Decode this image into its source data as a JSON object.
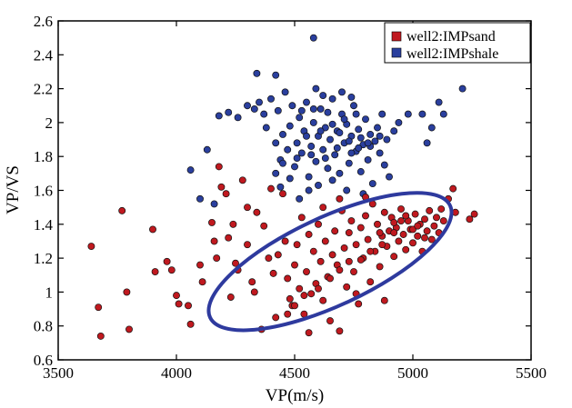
{
  "chart_data": {
    "type": "scatter",
    "title": "",
    "xlabel": "VP(m/s)",
    "ylabel": "VP/VS",
    "xlim": [
      3500,
      5500
    ],
    "ylim": [
      0.6,
      2.6
    ],
    "xticks": [
      "3500",
      "4000",
      "4500",
      "5000",
      "5500"
    ],
    "yticks": [
      "0.6",
      "0.8",
      "1",
      "1.2",
      "1.4",
      "1.6",
      "1.8",
      "2",
      "2.2",
      "2.4",
      "2.6"
    ],
    "xtick_values": [
      3500,
      4000,
      4500,
      5000,
      5500
    ],
    "ytick_values": [
      0.6,
      0.8,
      1.0,
      1.2,
      1.4,
      1.6,
      1.8,
      2.0,
      2.2,
      2.4,
      2.6
    ],
    "legend_position": "top-right",
    "series": [
      {
        "name": "well2:IMPsand",
        "color": "#c0191f",
        "points": [
          [
            3640,
            1.27
          ],
          [
            3670,
            0.91
          ],
          [
            3680,
            0.74
          ],
          [
            3770,
            1.48
          ],
          [
            3790,
            1.0
          ],
          [
            3800,
            0.78
          ],
          [
            3900,
            1.37
          ],
          [
            3910,
            1.12
          ],
          [
            3960,
            1.18
          ],
          [
            3980,
            1.13
          ],
          [
            4000,
            0.98
          ],
          [
            4010,
            0.93
          ],
          [
            4050,
            0.92
          ],
          [
            4060,
            0.81
          ],
          [
            4100,
            1.16
          ],
          [
            4110,
            1.06
          ],
          [
            4150,
            1.41
          ],
          [
            4160,
            1.3
          ],
          [
            4170,
            1.2
          ],
          [
            4180,
            1.74
          ],
          [
            4190,
            1.62
          ],
          [
            4210,
            1.58
          ],
          [
            4220,
            1.32
          ],
          [
            4240,
            1.4
          ],
          [
            4260,
            1.13
          ],
          [
            4280,
            1.66
          ],
          [
            4300,
            1.5
          ],
          [
            4320,
            1.06
          ],
          [
            4340,
            1.47
          ],
          [
            4360,
            0.78
          ],
          [
            4370,
            1.39
          ],
          [
            4390,
            1.2
          ],
          [
            4410,
            1.11
          ],
          [
            4420,
            0.85
          ],
          [
            4430,
            1.22
          ],
          [
            4450,
            1.58
          ],
          [
            4460,
            1.3
          ],
          [
            4470,
            1.08
          ],
          [
            4480,
            0.96
          ],
          [
            4490,
            0.92
          ],
          [
            4500,
            1.16
          ],
          [
            4510,
            1.28
          ],
          [
            4520,
            1.02
          ],
          [
            4530,
            1.44
          ],
          [
            4540,
            0.87
          ],
          [
            4550,
            1.12
          ],
          [
            4560,
            1.34
          ],
          [
            4570,
            0.99
          ],
          [
            4580,
            1.24
          ],
          [
            4590,
            1.05
          ],
          [
            4600,
            1.4
          ],
          [
            4610,
            1.18
          ],
          [
            4620,
            0.95
          ],
          [
            4630,
            1.3
          ],
          [
            4640,
            1.09
          ],
          [
            4650,
            0.83
          ],
          [
            4660,
            1.22
          ],
          [
            4670,
            1.36
          ],
          [
            4680,
            1.16
          ],
          [
            4690,
            0.77
          ],
          [
            4700,
            1.48
          ],
          [
            4710,
            1.26
          ],
          [
            4720,
            1.03
          ],
          [
            4730,
            1.35
          ],
          [
            4740,
            1.42
          ],
          [
            4750,
            1.12
          ],
          [
            4760,
            1.28
          ],
          [
            4770,
            0.93
          ],
          [
            4780,
            1.38
          ],
          [
            4790,
            1.2
          ],
          [
            4800,
            1.45
          ],
          [
            4810,
            1.31
          ],
          [
            4820,
            1.06
          ],
          [
            4830,
            1.52
          ],
          [
            4840,
            1.24
          ],
          [
            4850,
            1.4
          ],
          [
            4860,
            1.15
          ],
          [
            4870,
            1.33
          ],
          [
            4880,
            1.47
          ],
          [
            4890,
            1.27
          ],
          [
            4900,
            1.36
          ],
          [
            4910,
            1.44
          ],
          [
            4920,
            1.21
          ],
          [
            4930,
            1.38
          ],
          [
            4940,
            1.3
          ],
          [
            4950,
            1.49
          ],
          [
            4960,
            1.34
          ],
          [
            4970,
            1.25
          ],
          [
            4980,
            1.42
          ],
          [
            4990,
            1.37
          ],
          [
            5000,
            1.29
          ],
          [
            5010,
            1.46
          ],
          [
            5020,
            1.33
          ],
          [
            5030,
            1.4
          ],
          [
            5040,
            1.24
          ],
          [
            5050,
            1.43
          ],
          [
            5060,
            1.36
          ],
          [
            5070,
            1.48
          ],
          [
            5080,
            1.31
          ],
          [
            5090,
            1.39
          ],
          [
            5100,
            1.44
          ],
          [
            5110,
            1.35
          ],
          [
            5120,
            1.49
          ],
          [
            5130,
            1.42
          ],
          [
            5150,
            1.55
          ],
          [
            5170,
            1.61
          ],
          [
            5180,
            1.47
          ],
          [
            5240,
            1.43
          ],
          [
            5260,
            1.46
          ],
          [
            4400,
            1.61
          ],
          [
            4330,
            1.0
          ],
          [
            4880,
            0.95
          ],
          [
            4760,
            0.99
          ],
          [
            4560,
            0.76
          ],
          [
            4620,
            1.5
          ],
          [
            4690,
            1.55
          ],
          [
            4800,
            1.56
          ],
          [
            4300,
            1.28
          ],
          [
            4250,
            1.17
          ],
          [
            4230,
            0.97
          ],
          [
            4950,
            1.42
          ],
          [
            5000,
            1.37
          ],
          [
            5050,
            1.32
          ],
          [
            4920,
            1.35
          ],
          [
            4870,
            1.28
          ],
          [
            4820,
            1.24
          ],
          [
            4780,
            1.19
          ],
          [
            4730,
            1.18
          ],
          [
            4690,
            1.13
          ],
          [
            4650,
            1.08
          ],
          [
            4600,
            1.02
          ],
          [
            4540,
            0.98
          ],
          [
            4500,
            0.92
          ],
          [
            4470,
            0.87
          ],
          [
            4920,
            1.41
          ],
          [
            4970,
            1.45
          ],
          [
            5020,
            1.39
          ],
          [
            4860,
            1.35
          ]
        ]
      },
      {
        "name": "well2:IMPshale",
        "color": "#2a3f9e",
        "points": [
          [
            4580,
            2.5
          ],
          [
            4340,
            2.29
          ],
          [
            4420,
            2.28
          ],
          [
            4180,
            2.04
          ],
          [
            4220,
            2.06
          ],
          [
            4130,
            1.84
          ],
          [
            4060,
            1.72
          ],
          [
            4100,
            1.55
          ],
          [
            4160,
            1.52
          ],
          [
            4260,
            2.03
          ],
          [
            4300,
            2.1
          ],
          [
            4330,
            2.08
          ],
          [
            4350,
            2.12
          ],
          [
            4370,
            2.05
          ],
          [
            4380,
            1.97
          ],
          [
            4400,
            2.14
          ],
          [
            4420,
            1.88
          ],
          [
            4430,
            2.07
          ],
          [
            4440,
            1.78
          ],
          [
            4450,
            1.93
          ],
          [
            4460,
            2.18
          ],
          [
            4470,
            1.84
          ],
          [
            4480,
            1.98
          ],
          [
            4490,
            2.1
          ],
          [
            4500,
            1.74
          ],
          [
            4510,
            1.88
          ],
          [
            4520,
            2.03
          ],
          [
            4530,
            1.82
          ],
          [
            4540,
            1.95
          ],
          [
            4550,
            2.12
          ],
          [
            4560,
            1.68
          ],
          [
            4570,
            1.86
          ],
          [
            4580,
            2.0
          ],
          [
            4590,
            1.77
          ],
          [
            4600,
            1.92
          ],
          [
            4610,
            2.08
          ],
          [
            4620,
            1.84
          ],
          [
            4630,
            1.97
          ],
          [
            4640,
            1.73
          ],
          [
            4650,
            1.9
          ],
          [
            4660,
            2.14
          ],
          [
            4670,
            1.81
          ],
          [
            4680,
            1.95
          ],
          [
            4690,
            1.7
          ],
          [
            4700,
            2.05
          ],
          [
            4710,
            1.88
          ],
          [
            4720,
            1.99
          ],
          [
            4730,
            1.76
          ],
          [
            4740,
            1.92
          ],
          [
            4750,
            2.1
          ],
          [
            4760,
            1.83
          ],
          [
            4770,
            1.96
          ],
          [
            4780,
            1.71
          ],
          [
            4790,
            1.87
          ],
          [
            4800,
            2.02
          ],
          [
            4810,
            1.78
          ],
          [
            4820,
            1.93
          ],
          [
            4830,
            1.64
          ],
          [
            4840,
            1.89
          ],
          [
            4850,
            1.97
          ],
          [
            4860,
            1.82
          ],
          [
            4870,
            2.05
          ],
          [
            4880,
            1.75
          ],
          [
            4890,
            1.9
          ],
          [
            4900,
            1.68
          ],
          [
            4920,
            1.95
          ],
          [
            4940,
            2.0
          ],
          [
            4980,
            2.05
          ],
          [
            5040,
            2.05
          ],
          [
            5060,
            1.88
          ],
          [
            5080,
            1.97
          ],
          [
            5110,
            2.12
          ],
          [
            5130,
            2.05
          ],
          [
            5210,
            2.2
          ],
          [
            4590,
            2.2
          ],
          [
            4620,
            2.16
          ],
          [
            4700,
            2.18
          ],
          [
            4740,
            2.15
          ],
          [
            4560,
            1.6
          ],
          [
            4520,
            1.55
          ],
          [
            4600,
            1.63
          ],
          [
            4660,
            1.66
          ],
          [
            4720,
            1.6
          ],
          [
            4790,
            1.58
          ],
          [
            4480,
            1.67
          ],
          [
            4440,
            1.62
          ],
          [
            4420,
            1.7
          ],
          [
            4450,
            1.76
          ],
          [
            4510,
            1.79
          ],
          [
            4570,
            1.81
          ],
          [
            4630,
            1.79
          ],
          [
            4680,
            1.85
          ],
          [
            4740,
            1.82
          ],
          [
            4780,
            1.91
          ],
          [
            4820,
            1.86
          ],
          [
            4860,
            1.92
          ],
          [
            4550,
            1.92
          ],
          [
            4610,
            1.95
          ],
          [
            4660,
            1.99
          ],
          [
            4710,
            2.02
          ],
          [
            4760,
            2.05
          ],
          [
            4530,
            2.07
          ],
          [
            4580,
            2.08
          ],
          [
            4640,
            2.06
          ],
          [
            4690,
            1.94
          ],
          [
            4730,
            1.89
          ],
          [
            4770,
            1.85
          ],
          [
            4810,
            1.88
          ]
        ]
      }
    ],
    "annotations": [
      {
        "type": "ellipse",
        "color": "#2e3a9e",
        "center": [
          4650,
          1.18
        ],
        "semi_axes_data": [
          560,
          0.26
        ],
        "angle_deg": -25
      }
    ]
  }
}
